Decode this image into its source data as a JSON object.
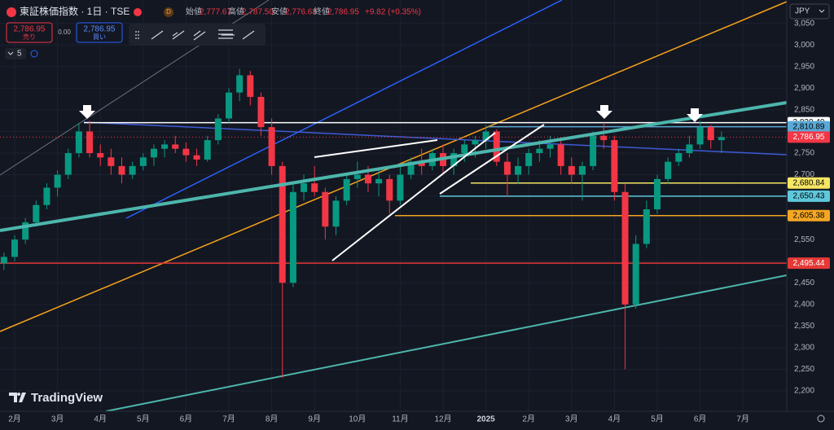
{
  "chart_data": {
    "type": "candlestick",
    "title": "東証株価指数 · 1日 · TSE",
    "up_color": "#089981",
    "down_color": "#f23645",
    "open": [
      2495,
      2510,
      2550,
      2590,
      2630,
      2670,
      2700,
      2750,
      2800,
      2750,
      2740,
      2720,
      2700,
      2720,
      2740,
      2760,
      2770,
      2760,
      2745,
      2735,
      2780,
      2830,
      2890,
      2930,
      2880,
      2810,
      2720,
      2450,
      2660,
      2680,
      2660,
      2580,
      2640,
      2690,
      2700,
      2680,
      2690,
      2640,
      2700,
      2730,
      2720,
      2750,
      2720,
      2750,
      2770,
      2780,
      2800,
      2730,
      2700,
      2720,
      2750,
      2760,
      2770,
      2720,
      2700,
      2720,
      2790,
      2780,
      2660,
      2400,
      2540,
      2620,
      2690,
      2730,
      2750,
      2770,
      2810,
      2780
    ],
    "high": [
      2520,
      2560,
      2600,
      2640,
      2680,
      2710,
      2760,
      2820,
      2825,
      2770,
      2760,
      2740,
      2730,
      2750,
      2770,
      2780,
      2790,
      2775,
      2760,
      2790,
      2840,
      2900,
      2945,
      2940,
      2890,
      2830,
      2730,
      2680,
      2700,
      2720,
      2670,
      2650,
      2700,
      2730,
      2720,
      2710,
      2700,
      2720,
      2740,
      2760,
      2760,
      2770,
      2760,
      2780,
      2790,
      2815,
      2805,
      2750,
      2740,
      2760,
      2780,
      2790,
      2780,
      2740,
      2730,
      2800,
      2820,
      2790,
      2680,
      2560,
      2640,
      2700,
      2740,
      2760,
      2790,
      2825,
      2815,
      2800
    ],
    "low": [
      2480,
      2500,
      2540,
      2580,
      2620,
      2650,
      2690,
      2740,
      2740,
      2720,
      2700,
      2680,
      2690,
      2710,
      2720,
      2740,
      2750,
      2730,
      2720,
      2730,
      2770,
      2820,
      2870,
      2860,
      2790,
      2700,
      2230,
      2440,
      2640,
      2650,
      2550,
      2560,
      2630,
      2670,
      2660,
      2650,
      2610,
      2630,
      2690,
      2700,
      2710,
      2700,
      2700,
      2730,
      2740,
      2760,
      2720,
      2650,
      2680,
      2700,
      2730,
      2740,
      2700,
      2680,
      2640,
      2710,
      2760,
      2640,
      2250,
      2390,
      2530,
      2610,
      2680,
      2720,
      2740,
      2760,
      2760,
      2750
    ],
    "close": [
      2510,
      2550,
      2590,
      2630,
      2670,
      2700,
      2750,
      2800,
      2750,
      2740,
      2720,
      2700,
      2720,
      2740,
      2760,
      2770,
      2760,
      2745,
      2735,
      2780,
      2830,
      2890,
      2930,
      2880,
      2810,
      2720,
      2450,
      2660,
      2680,
      2660,
      2580,
      2640,
      2690,
      2700,
      2680,
      2690,
      2640,
      2700,
      2730,
      2720,
      2750,
      2720,
      2750,
      2770,
      2780,
      2800,
      2730,
      2700,
      2720,
      2750,
      2760,
      2770,
      2720,
      2700,
      2720,
      2790,
      2780,
      2660,
      2400,
      2540,
      2620,
      2690,
      2730,
      2750,
      2770,
      2810,
      2780,
      2787
    ],
    "ylim": [
      2153,
      3104
    ],
    "yticks": [
      {
        "value": 2200,
        "label": "2,200"
      },
      {
        "value": 2250,
        "label": "2,250"
      },
      {
        "value": 2300,
        "label": "2,300"
      },
      {
        "value": 2350,
        "label": "2,350"
      },
      {
        "value": 2400,
        "label": "2,400"
      },
      {
        "value": 2450,
        "label": "2,450"
      },
      {
        "value": 2500,
        "label": "2,500"
      },
      {
        "value": 2550,
        "label": "2,550"
      },
      {
        "value": 2600,
        "label": "2,600"
      },
      {
        "value": 2650,
        "label": "2,650"
      },
      {
        "value": 2700,
        "label": "2,700"
      },
      {
        "value": 2750,
        "label": "2,750"
      },
      {
        "value": 2800,
        "label": "2,800"
      },
      {
        "value": 2850,
        "label": "2,850"
      },
      {
        "value": 2900,
        "label": "2,900"
      },
      {
        "value": 2950,
        "label": "2,950"
      },
      {
        "value": 3000,
        "label": "3,000"
      },
      {
        "value": 3050,
        "label": "3,050"
      }
    ],
    "x_axis_labels": [
      "2月",
      "3月",
      "4月",
      "5月",
      "6月",
      "7月",
      "8月",
      "9月",
      "10月",
      "11月",
      "12月",
      "2025",
      "2月",
      "3月",
      "4月",
      "5月",
      "6月",
      "7月"
    ],
    "levels": [
      {
        "value": 2820.4,
        "label": "2,820.40",
        "color": "#ffffff",
        "text_color": "#000000"
      },
      {
        "value": 2810.89,
        "label": "2,810.89",
        "color": "#5aa9d6",
        "text_color": "#000000"
      },
      {
        "value": 2786.95,
        "label": "2,786.95",
        "color": "#f23645",
        "text_color": "#ffffff"
      },
      {
        "value": 2680.84,
        "label": "2,680.84",
        "color": "#f5e663",
        "text_color": "#000000"
      },
      {
        "value": 2650.43,
        "label": "2,650.43",
        "color": "#5ec8dc",
        "text_color": "#000000"
      },
      {
        "value": 2605.38,
        "label": "2,605.38",
        "color": "#f5a623",
        "text_color": "#000000"
      },
      {
        "value": 2495.44,
        "label": "2,495.44",
        "color": "#e53935",
        "text_color": "#ffffff"
      }
    ],
    "grid": true
  },
  "header": {
    "open_label": "始値",
    "open": "2,777.67",
    "high_label": "高値",
    "high": "2,787.50",
    "low_label": "安値",
    "low": "2,776.68",
    "close_label": "終値",
    "close": "2,786.95",
    "change": "+9.82 (+0.35%)"
  },
  "trade": {
    "sell_price": "2,786.95",
    "sell_label": "売り",
    "spread": "0.00",
    "buy_price": "2,786.95",
    "buy_label": "買い"
  },
  "indicators_count": "5",
  "currency": "JPY",
  "brand": "TradingView"
}
